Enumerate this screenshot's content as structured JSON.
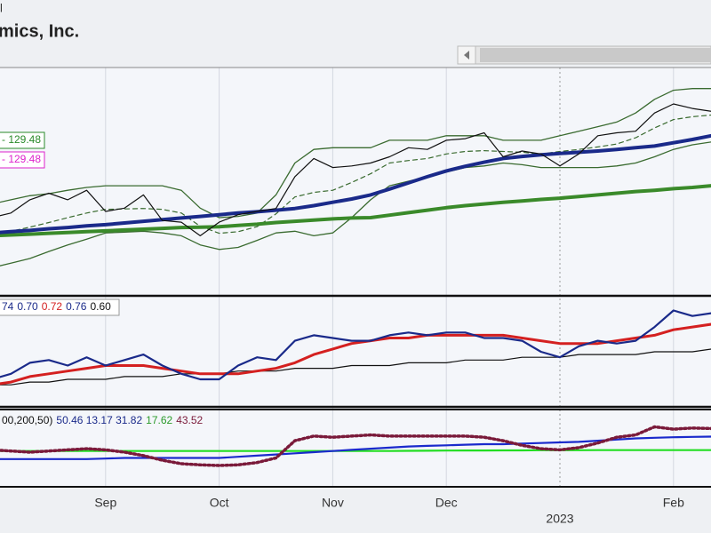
{
  "header": {
    "fragment": "l",
    "title": "mics, Inc."
  },
  "chart_data": [
    {
      "type": "line",
      "categories": [
        null,
        null,
        null,
        null,
        null,
        null,
        "Sep",
        null,
        null,
        null,
        null,
        null,
        "Oct",
        null,
        null,
        null,
        null,
        null,
        "Nov",
        null,
        null,
        null,
        null,
        null,
        "Dec",
        null,
        null,
        null,
        null,
        null,
        "2023",
        null,
        null,
        null,
        null,
        null,
        "Feb",
        null,
        null
      ],
      "ylim": [
        85,
        140
      ],
      "annotations": [
        {
          "text": "- 129.48",
          "color": "#2a8a2a"
        },
        {
          "text": "- 129.48",
          "color": "#dd22cc"
        }
      ],
      "series": [
        {
          "color": "#3a6b30",
          "width": 1.3,
          "values": [
            107,
            108,
            109,
            109.5,
            110.3,
            111,
            111.4,
            111.4,
            111.4,
            111.4,
            110.3,
            106,
            103.7,
            104,
            104.8,
            109.2,
            116.9,
            120.2,
            120.6,
            120.6,
            120.6,
            122.4,
            122.4,
            122.4,
            123.5,
            123.5,
            123.5,
            122.4,
            122.4,
            122.4,
            123.5,
            124.6,
            125.7,
            126.8,
            129,
            132.3,
            134.5,
            134.9,
            134.9
          ]
        },
        {
          "color": "#3a6b30",
          "width": 1.3,
          "values": [
            91.6,
            92.7,
            93.8,
            95.5,
            97.1,
            98.5,
            100,
            100.2,
            100.4,
            100,
            99.3,
            97.1,
            96,
            96.5,
            98.2,
            100,
            100.4,
            99.3,
            100,
            103.7,
            108,
            111.4,
            112.5,
            113.6,
            114.7,
            115.8,
            116.2,
            116.9,
            116.5,
            115.8,
            115.8,
            115.8,
            115.8,
            116.2,
            116.9,
            118.4,
            120.2,
            121.3,
            122
          ]
        },
        {
          "color": "#3a6b30",
          "width": 1.2,
          "dash": "5,4",
          "values": [
            99.3,
            100.4,
            101.4,
            102.5,
            103.7,
            104.8,
            105.7,
            105.8,
            105.9,
            105.7,
            104.8,
            101.6,
            99.9,
            100.3,
            101.5,
            104.6,
            108.7,
            109.8,
            110.3,
            112.2,
            114.3,
            116.9,
            117.5,
            118,
            119.1,
            119.7,
            119.9,
            119.7,
            119.5,
            119.1,
            119.7,
            120.2,
            120.8,
            121.5,
            123,
            125.4,
            127.4,
            128.1,
            128.5
          ]
        },
        {
          "color": "#3a8a2a",
          "width": 4,
          "values": [
            99.3,
            99.5,
            99.7,
            99.9,
            100.1,
            100.3,
            100.5,
            100.7,
            100.9,
            101.1,
            101.3,
            101.4,
            101.5,
            101.8,
            102.1,
            102.5,
            102.8,
            103.1,
            103.4,
            103.6,
            103.7,
            104.3,
            104.9,
            105.5,
            106.1,
            106.6,
            107,
            107.4,
            107.7,
            108.1,
            108.4,
            108.8,
            109.2,
            109.6,
            110,
            110.3,
            110.7,
            111,
            111.4
          ]
        },
        {
          "color": "#1a2a8a",
          "width": 4,
          "values": [
            100,
            100.3,
            100.6,
            101,
            101.3,
            101.7,
            102,
            102.4,
            102.8,
            103.2,
            103.6,
            104,
            104.4,
            104.8,
            105.1,
            105.5,
            105.9,
            106.6,
            107.4,
            108.2,
            109.2,
            110.6,
            112.1,
            113.6,
            115,
            116.1,
            117.1,
            118,
            118.5,
            118.9,
            119.2,
            119.5,
            119.8,
            120.2,
            120.6,
            121,
            121.8,
            122.6,
            123.5
          ]
        },
        {
          "color": "#111111",
          "width": 1.2,
          "values": [
            103.7,
            104.8,
            108,
            109.6,
            108,
            110.3,
            105.2,
            106,
            109.2,
            103,
            102.6,
            99.3,
            102.6,
            104.4,
            105.2,
            105.9,
            113.6,
            118,
            115.8,
            116.2,
            116.9,
            118.4,
            120.6,
            120.2,
            122.4,
            122.8,
            124.2,
            118.4,
            119.8,
            119.1,
            116.2,
            119.1,
            123.5,
            124.2,
            124.6,
            129,
            131.2,
            130.1,
            129.4
          ]
        }
      ]
    },
    {
      "type": "line",
      "ylim": [
        0.4,
        0.8
      ],
      "legend": [
        {
          "text": "74",
          "color": "#1a2a8a"
        },
        {
          "text": "0.70",
          "color": "#1a2a8a"
        },
        {
          "text": "0.72",
          "color": "#d42020"
        },
        {
          "text": "0.76",
          "color": "#1a2a8a"
        },
        {
          "text": "0.60",
          "color": "#111111"
        }
      ],
      "series": [
        {
          "color": "#111111",
          "width": 1.2,
          "values": [
            0.48,
            0.48,
            0.49,
            0.49,
            0.5,
            0.5,
            0.5,
            0.51,
            0.51,
            0.51,
            0.52,
            0.52,
            0.52,
            0.53,
            0.53,
            0.53,
            0.54,
            0.54,
            0.54,
            0.55,
            0.55,
            0.55,
            0.56,
            0.56,
            0.56,
            0.57,
            0.57,
            0.57,
            0.58,
            0.58,
            0.58,
            0.59,
            0.59,
            0.59,
            0.59,
            0.6,
            0.6,
            0.6,
            0.61
          ]
        },
        {
          "color": "#d42020",
          "width": 3,
          "values": [
            0.48,
            0.49,
            0.51,
            0.52,
            0.53,
            0.54,
            0.55,
            0.55,
            0.55,
            0.54,
            0.53,
            0.52,
            0.52,
            0.52,
            0.53,
            0.54,
            0.56,
            0.59,
            0.61,
            0.63,
            0.64,
            0.65,
            0.65,
            0.66,
            0.66,
            0.66,
            0.66,
            0.66,
            0.65,
            0.64,
            0.63,
            0.63,
            0.63,
            0.64,
            0.65,
            0.66,
            0.68,
            0.69,
            0.7
          ]
        },
        {
          "color": "#1a2a8a",
          "width": 2.2,
          "values": [
            0.5,
            0.52,
            0.56,
            0.57,
            0.55,
            0.58,
            0.55,
            0.57,
            0.59,
            0.55,
            0.52,
            0.5,
            0.5,
            0.55,
            0.58,
            0.57,
            0.64,
            0.66,
            0.65,
            0.64,
            0.64,
            0.66,
            0.67,
            0.66,
            0.67,
            0.67,
            0.65,
            0.65,
            0.64,
            0.6,
            0.58,
            0.62,
            0.64,
            0.63,
            0.64,
            0.69,
            0.75,
            0.73,
            0.74
          ]
        }
      ]
    },
    {
      "type": "line",
      "ylim": [
        0,
        67
      ],
      "legend": [
        {
          "text": "00,200,50)",
          "color": "#111111"
        },
        {
          "text": "50.46 13.17 31.82",
          "color": "#1a2a8a"
        },
        {
          "text": "17.62",
          "color": "#2a9a2a"
        },
        {
          "text": "43.52",
          "color": "#7a1a3a"
        }
      ],
      "series": [
        {
          "color": "#22dd22",
          "width": 2.2,
          "values": [
            31,
            31,
            31,
            31,
            31,
            31,
            31,
            31,
            31,
            31,
            31,
            31,
            31,
            31,
            31,
            31,
            31,
            31,
            31,
            31,
            31,
            31,
            31.2,
            31.3,
            31.4,
            31.5,
            31.5,
            31.6,
            31.6,
            31.7,
            31.7,
            31.7,
            31.8,
            31.8,
            31.8,
            31.8,
            31.8,
            31.8,
            31.8
          ]
        },
        {
          "color": "#1a2acc",
          "width": 2.2,
          "values": [
            24,
            24,
            24,
            24,
            24,
            24,
            24.5,
            25,
            25,
            25,
            25,
            25,
            25,
            26,
            27,
            28,
            29,
            30,
            31,
            32,
            33,
            34,
            35,
            35.5,
            36,
            36.5,
            37,
            37,
            37.5,
            38,
            38.5,
            39,
            40,
            41,
            42,
            42.5,
            43,
            43.3,
            43.5
          ]
        },
        {
          "color": "#7a1a3a",
          "width": 3.5,
          "dash": "2,3",
          "values": [
            32,
            31,
            30,
            31,
            32,
            33,
            32,
            30,
            27,
            23,
            20,
            19,
            18.5,
            19,
            21,
            25,
            40,
            44,
            43,
            44,
            45,
            44,
            44,
            44,
            44,
            44,
            43,
            40,
            36,
            33,
            32,
            34,
            38,
            43,
            45,
            52,
            50,
            51,
            50.5
          ]
        }
      ]
    }
  ]
}
